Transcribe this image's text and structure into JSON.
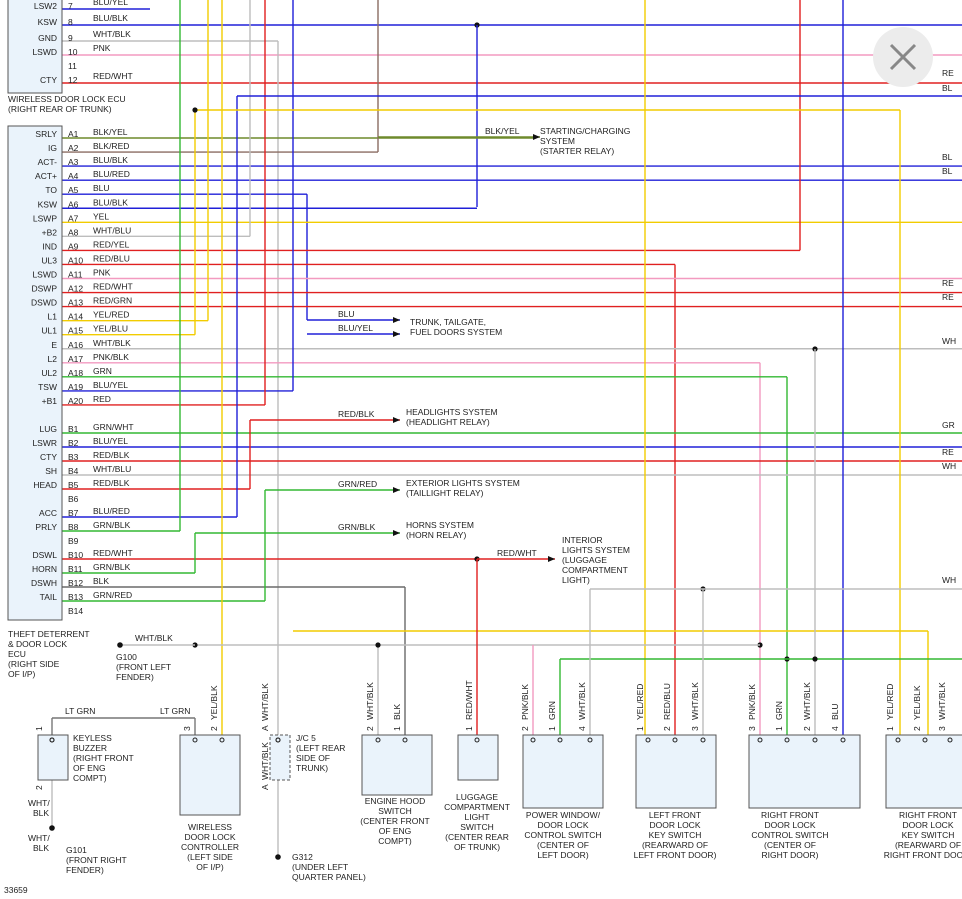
{
  "figure_id": "33659",
  "upper_ecu": {
    "label": [
      "WIRELESS DOOR LOCK ECU",
      "(RIGHT REAR OF TRUNK)"
    ],
    "rows": [
      {
        "name": "LSW2",
        "pin": "7",
        "wire": "BLU/YEL"
      },
      {
        "name": "KSW",
        "pin": "8",
        "wire": "BLU/BLK"
      },
      {
        "name": "GND",
        "pin": "9",
        "wire": "WHT/BLK"
      },
      {
        "name": "LSWD",
        "pin": "10",
        "wire": "PNK"
      },
      {
        "pin": "11"
      },
      {
        "name": "CTY",
        "pin": "12",
        "wire": "RED/WHT"
      }
    ]
  },
  "theft_ecu": {
    "label": [
      "THEFT DETERRENT",
      "& DOOR LOCK",
      "ECU",
      "(RIGHT SIDE",
      "OF I/P)"
    ],
    "rows": [
      {
        "name": "SRLY",
        "pin": "A1",
        "wire": "BLK/YEL"
      },
      {
        "name": "IG",
        "pin": "A2",
        "wire": "BLK/RED"
      },
      {
        "name": "ACT-",
        "pin": "A3",
        "wire": "BLU/BLK"
      },
      {
        "name": "ACT+",
        "pin": "A4",
        "wire": "BLU/RED"
      },
      {
        "name": "TO",
        "pin": "A5",
        "wire": "BLU"
      },
      {
        "name": "KSW",
        "pin": "A6",
        "wire": "BLU/BLK"
      },
      {
        "name": "LSWP",
        "pin": "A7",
        "wire": "YEL"
      },
      {
        "name": "+B2",
        "pin": "A8",
        "wire": "WHT/BLU"
      },
      {
        "name": "IND",
        "pin": "A9",
        "wire": "RED/YEL"
      },
      {
        "name": "UL3",
        "pin": "A10",
        "wire": "RED/BLU"
      },
      {
        "name": "LSWD",
        "pin": "A11",
        "wire": "PNK"
      },
      {
        "name": "DSWP",
        "pin": "A12",
        "wire": "RED/WHT"
      },
      {
        "name": "DSWD",
        "pin": "A13",
        "wire": "RED/GRN"
      },
      {
        "name": "L1",
        "pin": "A14",
        "wire": "YEL/RED"
      },
      {
        "name": "UL1",
        "pin": "A15",
        "wire": "YEL/BLU"
      },
      {
        "name": "E",
        "pin": "A16",
        "wire": "WHT/BLK"
      },
      {
        "name": "L2",
        "pin": "A17",
        "wire": "PNK/BLK"
      },
      {
        "name": "UL2",
        "pin": "A18",
        "wire": "GRN"
      },
      {
        "name": "TSW",
        "pin": "A19",
        "wire": "BLU/YEL"
      },
      {
        "name": "+B1",
        "pin": "A20",
        "wire": "RED"
      },
      {
        "name": "LUG",
        "pin": "B1",
        "wire": "GRN/WHT"
      },
      {
        "name": "LSWR",
        "pin": "B2",
        "wire": "BLU/YEL"
      },
      {
        "name": "CTY",
        "pin": "B3",
        "wire": "RED/BLK"
      },
      {
        "name": "SH",
        "pin": "B4",
        "wire": "WHT/BLU"
      },
      {
        "name": "HEAD",
        "pin": "B5",
        "wire": "RED/BLK"
      },
      {
        "pin": "B6"
      },
      {
        "name": "ACC",
        "pin": "B7",
        "wire": "BLU/RED"
      },
      {
        "name": "PRLY",
        "pin": "B8",
        "wire": "GRN/BLK"
      },
      {
        "pin": "B9"
      },
      {
        "name": "DSWL",
        "pin": "B10",
        "wire": "RED/WHT"
      },
      {
        "name": "HORN",
        "pin": "B11",
        "wire": "GRN/BLK"
      },
      {
        "name": "DSWH",
        "pin": "B12",
        "wire": "BLK"
      },
      {
        "name": "TAIL",
        "pin": "B13",
        "wire": "GRN/RED"
      },
      {
        "pin": "B14"
      }
    ]
  },
  "destinations": [
    {
      "wires": [
        "BLK/YEL"
      ],
      "lines": [
        "STARTING/CHARGING",
        "SYSTEM",
        "(STARTER RELAY)"
      ]
    },
    {
      "wires": [
        "BLU",
        "BLU/YEL"
      ],
      "lines": [
        "TRUNK, TAILGATE,",
        "FUEL DOORS SYSTEM"
      ]
    },
    {
      "wires": [
        "RED/BLK"
      ],
      "lines": [
        "HEADLIGHTS SYSTEM",
        "(HEADLIGHT RELAY)"
      ]
    },
    {
      "wires": [
        "GRN/RED"
      ],
      "lines": [
        "EXTERIOR LIGHTS SYSTEM",
        "(TAILLIGHT RELAY)"
      ]
    },
    {
      "wires": [
        "GRN/BLK"
      ],
      "lines": [
        "HORNS SYSTEM",
        "(HORN RELAY)"
      ]
    },
    {
      "wires": [
        "RED/WHT"
      ],
      "lines": [
        "INTERIOR",
        "LIGHTS SYSTEM",
        "(LUGGAGE",
        "COMPARTMENT",
        "LIGHT)"
      ]
    }
  ],
  "edge_labels": [
    "RE",
    "BL",
    "BL",
    "BL",
    "RE",
    "RE",
    "WH",
    "GR",
    "RE",
    "WH",
    "WH"
  ],
  "components": [
    {
      "lines": [
        "KEYLESS",
        "BUZZER",
        "(RIGHT FRONT",
        "OF ENG",
        "COMPT)"
      ],
      "pins": [
        {
          "num": "1"
        },
        {
          "num": "2"
        }
      ],
      "wire_labels": [
        "LT GRN",
        "LT GRN",
        "WHT/",
        "BLK",
        "WHT/",
        "BLK"
      ]
    },
    {
      "lines": [
        "WIRELESS",
        "DOOR LOCK",
        "CONTROLLER",
        "(LEFT SIDE",
        "OF I/P)"
      ],
      "pins": [
        {
          "num": "3"
        },
        {
          "num": "2",
          "wire": "YEL/BLK"
        }
      ]
    },
    {
      "lines": [
        "J/C 5",
        "(LEFT REAR",
        "SIDE OF",
        "TRUNK)"
      ],
      "pins": [
        {
          "num": "A",
          "wire": "WHT/BLK"
        },
        {
          "num": "A",
          "wire": "WHT/BLK"
        }
      ]
    },
    {
      "lines": [
        "ENGINE HOOD",
        "SWITCH",
        "(CENTER FRONT",
        "OF ENG",
        "COMPT)"
      ],
      "pins": [
        {
          "num": "2",
          "wire": "WHT/BLK"
        },
        {
          "num": "1",
          "wire": "BLK"
        }
      ]
    },
    {
      "lines": [
        "LUGGAGE",
        "COMPARTMENT",
        "LIGHT",
        "SWITCH",
        "(CENTER REAR",
        "OF TRUNK)"
      ],
      "pins": [
        {
          "num": "1",
          "wire": "RED/WHT"
        }
      ]
    },
    {
      "lines": [
        "POWER WINDOW/",
        "DOOR LOCK",
        "CONTROL SWITCH",
        "(CENTER OF",
        "LEFT DOOR)"
      ],
      "pins": [
        {
          "num": "2",
          "wire": "PNK/BLK"
        },
        {
          "num": "1",
          "wire": "GRN"
        },
        {
          "num": "4",
          "wire": "WHT/BLK"
        }
      ]
    },
    {
      "lines": [
        "LEFT FRONT",
        "DOOR LOCK",
        "KEY SWITCH",
        "(REARWARD OF",
        "LEFT FRONT DOOR)"
      ],
      "pins": [
        {
          "num": "1",
          "wire": "YEL/RED"
        },
        {
          "num": "2",
          "wire": "RED/BLU"
        },
        {
          "num": "3",
          "wire": "WHT/BLK"
        }
      ]
    },
    {
      "lines": [
        "RIGHT FRONT",
        "DOOR LOCK",
        "CONTROL SWITCH",
        "(CENTER OF",
        "RIGHT DOOR)"
      ],
      "pins": [
        {
          "num": "3",
          "wire": "PNK/BLK"
        },
        {
          "num": "1",
          "wire": "GRN"
        },
        {
          "num": "2",
          "wire": "WHT/BLK"
        },
        {
          "num": "4",
          "wire": "BLU"
        }
      ]
    },
    {
      "lines": [
        "RIGHT FRONT",
        "DOOR LOCK",
        "KEY SWITCH",
        "(REARWARD OF",
        "RIGHT FRONT DOOR)"
      ],
      "pins": [
        {
          "num": "1",
          "wire": "YEL/RED"
        },
        {
          "num": "2",
          "wire": "YEL/BLK"
        },
        {
          "num": "3",
          "wire": "WHT/BLK"
        }
      ]
    }
  ],
  "grounds": [
    {
      "wire": "WHT/BLK",
      "lines": [
        "G100",
        "(FRONT LEFT",
        "FENDER)"
      ]
    },
    {
      "lines": [
        "G101",
        "(FRONT RIGHT",
        "FENDER)"
      ]
    },
    {
      "lines": [
        "G312",
        "(UNDER LEFT",
        "QUARTER PANEL)"
      ]
    }
  ]
}
